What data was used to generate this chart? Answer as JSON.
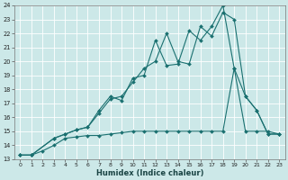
{
  "xlabel": "Humidex (Indice chaleur)",
  "bg_color": "#cce8e8",
  "line_color": "#1a7070",
  "grid_color": "#b0d8d8",
  "xlim": [
    -0.5,
    23.5
  ],
  "ylim": [
    13,
    24
  ],
  "xticks": [
    0,
    1,
    2,
    3,
    4,
    5,
    6,
    7,
    8,
    9,
    10,
    11,
    12,
    13,
    14,
    15,
    16,
    17,
    18,
    19,
    20,
    21,
    22,
    23
  ],
  "yticks": [
    13,
    14,
    15,
    16,
    17,
    18,
    19,
    20,
    21,
    22,
    23,
    24
  ],
  "line1_x": [
    0,
    1,
    3,
    4,
    5,
    6,
    7,
    8,
    9,
    10,
    11,
    12,
    13,
    14,
    15,
    16,
    17,
    18,
    19,
    20,
    21,
    22,
    23
  ],
  "line1_y": [
    13.3,
    13.3,
    14.5,
    14.8,
    15.1,
    15.3,
    16.5,
    17.5,
    17.2,
    18.8,
    19.0,
    21.5,
    19.7,
    19.8,
    22.2,
    21.5,
    22.5,
    24.0,
    19.5,
    17.5,
    16.5,
    14.8,
    14.8
  ],
  "line2_x": [
    0,
    1,
    3,
    4,
    5,
    6,
    7,
    8,
    9,
    10,
    11,
    12,
    13,
    14,
    15,
    16,
    17,
    18,
    19,
    20,
    21,
    22,
    23
  ],
  "line2_y": [
    13.3,
    13.3,
    14.5,
    14.8,
    15.1,
    15.3,
    16.3,
    17.3,
    17.5,
    18.5,
    19.5,
    20.0,
    22.0,
    20.0,
    19.8,
    22.5,
    21.8,
    23.5,
    23.0,
    17.5,
    16.5,
    14.8,
    14.8
  ],
  "line3_x": [
    0,
    1,
    2,
    3,
    4,
    5,
    6,
    7,
    8,
    9,
    10,
    11,
    12,
    13,
    14,
    15,
    16,
    17,
    18,
    19,
    20,
    21,
    22,
    23
  ],
  "line3_y": [
    13.3,
    13.3,
    13.6,
    14.0,
    14.5,
    14.6,
    14.7,
    14.7,
    14.8,
    14.9,
    15.0,
    15.0,
    15.0,
    15.0,
    15.0,
    15.0,
    15.0,
    15.0,
    15.0,
    19.5,
    15.0,
    15.0,
    15.0,
    14.8
  ]
}
